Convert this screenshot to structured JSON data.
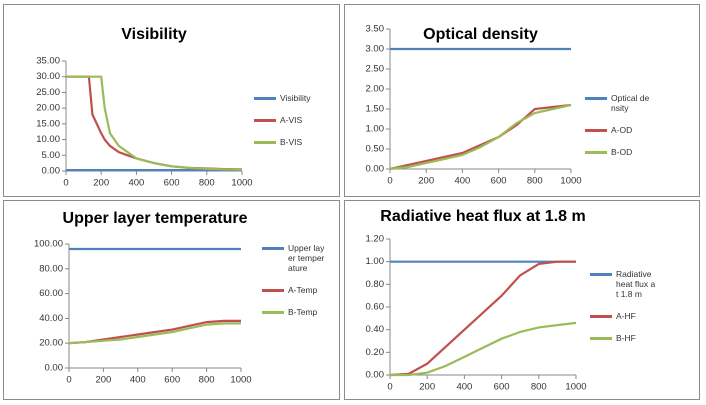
{
  "chart_data": [
    {
      "type": "line",
      "title": "Visibility",
      "x": [
        0,
        100,
        130,
        150,
        200,
        220,
        250,
        300,
        350,
        400,
        500,
        600,
        700,
        800,
        900,
        1000
      ],
      "series": [
        {
          "name": "Visibility",
          "color": "#4f81bd",
          "values": [
            0.3,
            0.3,
            0.3,
            0.3,
            0.3,
            0.3,
            0.3,
            0.3,
            0.3,
            0.3,
            0.3,
            0.3,
            0.3,
            0.3,
            0.3,
            0.3
          ]
        },
        {
          "name": "A-VIS",
          "color": "#c0504d",
          "values": [
            30,
            30,
            30,
            18,
            12,
            10,
            8,
            6,
            5,
            4,
            2.5,
            1.5,
            1,
            0.8,
            0.6,
            0.5
          ]
        },
        {
          "name": "B-VIS",
          "color": "#9bbb59",
          "values": [
            30,
            30,
            30,
            30,
            30,
            20,
            12,
            8,
            6,
            4,
            2.5,
            1.5,
            1,
            0.7,
            0.5,
            0.4
          ]
        }
      ],
      "xlim": [
        0,
        1000
      ],
      "xticks": [
        0,
        200,
        400,
        600,
        800,
        1000
      ],
      "ylim": [
        0,
        35
      ],
      "yticks": [
        {
          "value": 0,
          "label": "0.00"
        },
        {
          "value": 5,
          "label": "5.00"
        },
        {
          "value": 10,
          "label": "10.00"
        },
        {
          "value": 15,
          "label": "15.00"
        },
        {
          "value": 20,
          "label": "20.00"
        },
        {
          "value": 25,
          "label": "25.00"
        },
        {
          "value": 30,
          "label": "30.00"
        },
        {
          "value": 35,
          "label": "35.00"
        }
      ]
    },
    {
      "type": "line",
      "title": "Optical density",
      "x": [
        0,
        100,
        200,
        300,
        400,
        500,
        600,
        700,
        800,
        900,
        1000
      ],
      "series": [
        {
          "name": "Optical density",
          "color": "#4f81bd",
          "values": [
            3,
            3,
            3,
            3,
            3,
            3,
            3,
            3,
            3,
            3,
            3
          ]
        },
        {
          "name": "A-OD",
          "color": "#c0504d",
          "values": [
            0,
            0.1,
            0.2,
            0.3,
            0.4,
            0.6,
            0.8,
            1.1,
            1.5,
            1.55,
            1.6
          ]
        },
        {
          "name": "B-OD",
          "color": "#9bbb59",
          "values": [
            0,
            0.05,
            0.15,
            0.25,
            0.35,
            0.55,
            0.8,
            1.15,
            1.4,
            1.5,
            1.6
          ]
        }
      ],
      "xlim": [
        0,
        1000
      ],
      "xticks": [
        0,
        200,
        400,
        600,
        800,
        1000
      ],
      "ylim": [
        0,
        3.5
      ],
      "yticks": [
        {
          "value": 0,
          "label": "0.00"
        },
        {
          "value": 0.5,
          "label": "0.50"
        },
        {
          "value": 1,
          "label": "1.00"
        },
        {
          "value": 1.5,
          "label": "1.50"
        },
        {
          "value": 2,
          "label": "2.00"
        },
        {
          "value": 2.5,
          "label": "2.50"
        },
        {
          "value": 3,
          "label": "3.00"
        },
        {
          "value": 3.5,
          "label": "3.50"
        }
      ]
    },
    {
      "type": "line",
      "title": "Upper layer temperature",
      "x": [
        0,
        100,
        200,
        300,
        400,
        500,
        600,
        700,
        800,
        900,
        1000
      ],
      "series": [
        {
          "name": "Upper layer temperature",
          "color": "#4f81bd",
          "values": [
            96,
            96,
            96,
            96,
            96,
            96,
            96,
            96,
            96,
            96,
            96
          ]
        },
        {
          "name": "A-Temp",
          "color": "#c0504d",
          "values": [
            20,
            21,
            23,
            25,
            27,
            29,
            31,
            34,
            37,
            38,
            38
          ]
        },
        {
          "name": "B-Temp",
          "color": "#9bbb59",
          "values": [
            20,
            21,
            22,
            23,
            25,
            27,
            29,
            32,
            35,
            36,
            36
          ]
        }
      ],
      "xlim": [
        0,
        1000
      ],
      "xticks": [
        0,
        200,
        400,
        600,
        800,
        1000
      ],
      "ylim": [
        0,
        100
      ],
      "yticks": [
        {
          "value": 0,
          "label": "0.00"
        },
        {
          "value": 20,
          "label": "20.00"
        },
        {
          "value": 40,
          "label": "40.00"
        },
        {
          "value": 60,
          "label": "60.00"
        },
        {
          "value": 80,
          "label": "80.00"
        },
        {
          "value": 100,
          "label": "100.00"
        }
      ]
    },
    {
      "type": "line",
      "title": "Radiative heat flux at 1.8 m",
      "x": [
        0,
        100,
        200,
        300,
        400,
        500,
        600,
        700,
        800,
        900,
        1000
      ],
      "series": [
        {
          "name": "Radiative heat flux at 1.8 m",
          "color": "#4f81bd",
          "values": [
            1,
            1,
            1,
            1,
            1,
            1,
            1,
            1,
            1,
            1,
            1
          ]
        },
        {
          "name": "A-HF",
          "color": "#c0504d",
          "values": [
            0,
            0.01,
            0.1,
            0.25,
            0.4,
            0.55,
            0.7,
            0.88,
            0.98,
            1,
            1
          ]
        },
        {
          "name": "B-HF",
          "color": "#9bbb59",
          "values": [
            0,
            0,
            0.02,
            0.08,
            0.16,
            0.24,
            0.32,
            0.38,
            0.42,
            0.44,
            0.46
          ]
        }
      ],
      "xlim": [
        0,
        1000
      ],
      "xticks": [
        0,
        200,
        400,
        600,
        800,
        1000
      ],
      "ylim": [
        0,
        1.2
      ],
      "yticks": [
        {
          "value": 0,
          "label": "0.00"
        },
        {
          "value": 0.2,
          "label": "0.20"
        },
        {
          "value": 0.4,
          "label": "0.40"
        },
        {
          "value": 0.6,
          "label": "0.60"
        },
        {
          "value": 0.8,
          "label": "0.80"
        },
        {
          "value": 1,
          "label": "1.00"
        },
        {
          "value": 1.2,
          "label": "1.20"
        }
      ]
    }
  ]
}
